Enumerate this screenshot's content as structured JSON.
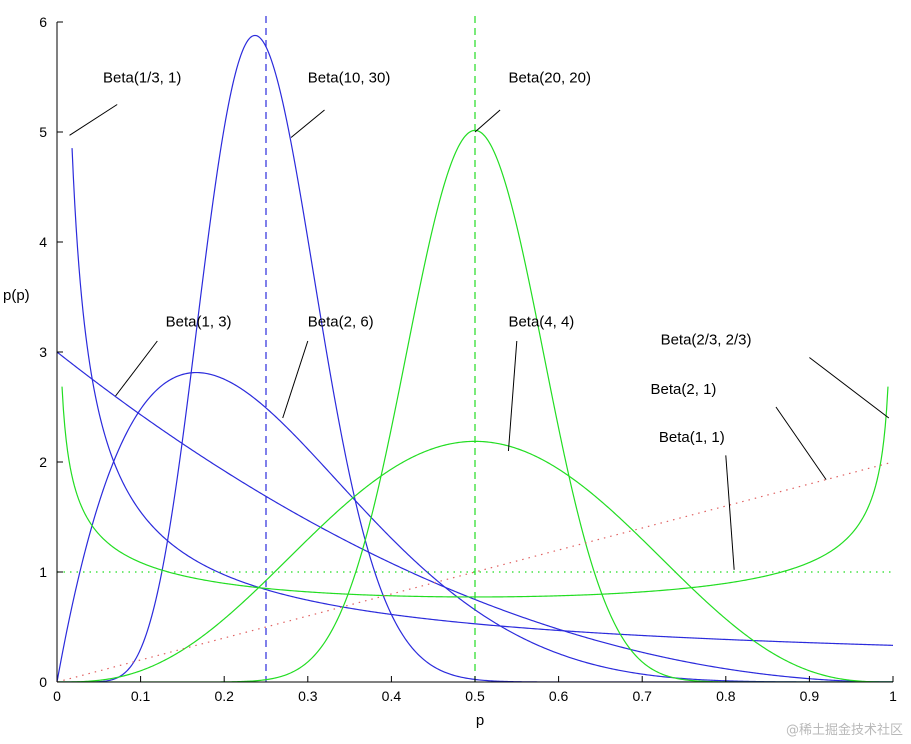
{
  "chart_data": {
    "type": "line",
    "title": "",
    "xlabel": "p",
    "ylabel": "p(p)",
    "xlim": [
      0,
      1
    ],
    "ylim": [
      0,
      6
    ],
    "xticks": [
      "0",
      "0.1",
      "0.2",
      "0.3",
      "0.4",
      "0.5",
      "0.6",
      "0.7",
      "0.8",
      "0.9",
      "1"
    ],
    "yticks": [
      "0",
      "1",
      "2",
      "3",
      "4",
      "5",
      "6"
    ],
    "grid": false,
    "colors": {
      "blue": "#2b2bdc",
      "green": "#22dd22",
      "red": "#e06060",
      "axis": "#000000"
    },
    "series": [
      {
        "name": "Beta(1/3, 1)",
        "alpha": 0.3333,
        "beta": 1,
        "color": "blue",
        "style": "solid",
        "xrange": [
          0.018,
          1
        ]
      },
      {
        "name": "Beta(10, 30)",
        "alpha": 10,
        "beta": 30,
        "color": "blue",
        "style": "solid",
        "xrange": [
          0,
          1
        ]
      },
      {
        "name": "Beta(1, 3)",
        "alpha": 1,
        "beta": 3,
        "color": "blue",
        "style": "solid",
        "xrange": [
          0,
          1
        ]
      },
      {
        "name": "Beta(2, 6)",
        "alpha": 2,
        "beta": 6,
        "color": "blue",
        "style": "solid",
        "xrange": [
          0,
          1
        ]
      },
      {
        "name": "Beta(20, 20)",
        "alpha": 20,
        "beta": 20,
        "color": "green",
        "style": "solid",
        "xrange": [
          0,
          1
        ]
      },
      {
        "name": "Beta(4, 4)",
        "alpha": 4,
        "beta": 4,
        "color": "green",
        "style": "solid",
        "xrange": [
          0,
          1
        ]
      },
      {
        "name": "Beta(2/3, 2/3)",
        "alpha": 0.6667,
        "beta": 0.6667,
        "color": "green",
        "style": "solid",
        "xrange": [
          0.006,
          0.994
        ]
      },
      {
        "name": "Beta(2, 1)",
        "alpha": 2,
        "beta": 1,
        "color": "red",
        "style": "dotted",
        "xrange": [
          0,
          1
        ]
      },
      {
        "name": "Beta(1, 1)",
        "alpha": 1,
        "beta": 1,
        "color": "green",
        "style": "dotted",
        "xrange": [
          0,
          1
        ]
      }
    ],
    "vlines": [
      {
        "x": 0.25,
        "color": "blue",
        "style": "dashed"
      },
      {
        "x": 0.5,
        "color": "green",
        "style": "dashed"
      }
    ],
    "annotations": [
      {
        "text": "Beta(1/3, 1)",
        "tx": 0.055,
        "ty": 5.45,
        "lx1": 0.072,
        "ly1": 5.25,
        "lx2": 0.015,
        "ly2": 4.97
      },
      {
        "text": "Beta(10, 30)",
        "tx": 0.3,
        "ty": 5.45,
        "lx1": 0.32,
        "ly1": 5.2,
        "lx2": 0.28,
        "ly2": 4.95
      },
      {
        "text": "Beta(20, 20)",
        "tx": 0.54,
        "ty": 5.45,
        "lx1": 0.53,
        "ly1": 5.2,
        "lx2": 0.5,
        "ly2": 5.0
      },
      {
        "text": "Beta(1, 3)",
        "tx": 0.13,
        "ty": 3.23,
        "lx1": 0.12,
        "ly1": 3.1,
        "lx2": 0.07,
        "ly2": 2.6
      },
      {
        "text": "Beta(2, 6)",
        "tx": 0.3,
        "ty": 3.23,
        "lx1": 0.3,
        "ly1": 3.1,
        "lx2": 0.27,
        "ly2": 2.4
      },
      {
        "text": "Beta(4, 4)",
        "tx": 0.54,
        "ty": 3.23,
        "lx1": 0.55,
        "ly1": 3.1,
        "lx2": 0.54,
        "ly2": 2.1
      },
      {
        "text": "Beta(2/3, 2/3)",
        "tx": 0.722,
        "ty": 3.07,
        "lx1": 0.9,
        "ly1": 2.95,
        "lx2": 0.995,
        "ly2": 2.4
      },
      {
        "text": "Beta(2, 1)",
        "tx": 0.71,
        "ty": 2.62,
        "lx1": 0.86,
        "ly1": 2.5,
        "lx2": 0.92,
        "ly2": 1.84
      },
      {
        "text": "Beta(1, 1)",
        "tx": 0.72,
        "ty": 2.18,
        "lx1": 0.8,
        "ly1": 2.06,
        "lx2": 0.81,
        "ly2": 1.02
      }
    ]
  },
  "watermark": "@稀土掘金技术社区"
}
